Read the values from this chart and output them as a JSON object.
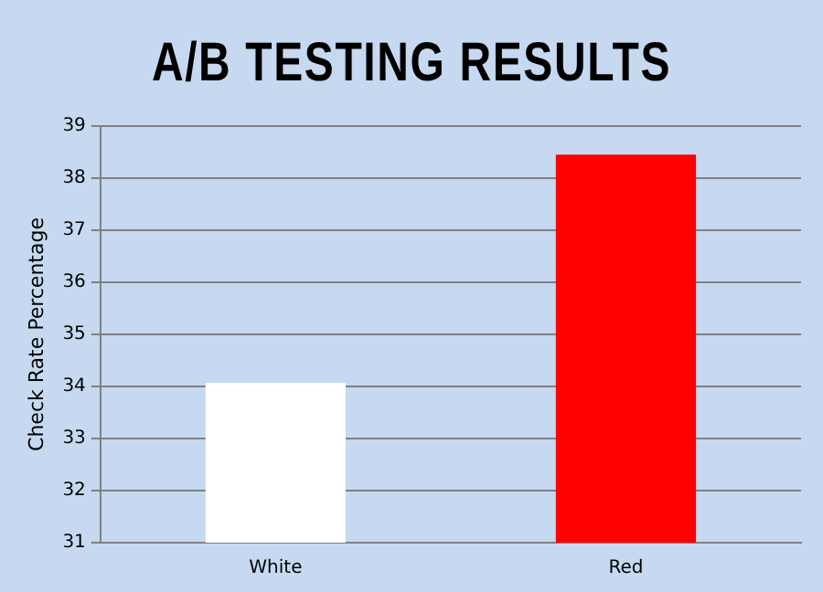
{
  "chart_data": {
    "type": "bar",
    "title": "A/B TESTING RESULTS",
    "ylabel": "Check Rate Percentage",
    "categories": [
      "White",
      "Red"
    ],
    "values": [
      34.07,
      38.45
    ],
    "colors": [
      "#ffffff",
      "#ff0000"
    ],
    "ylim": [
      31,
      39
    ],
    "yticks": [
      31,
      32,
      33,
      34,
      35,
      36,
      37,
      38,
      39
    ],
    "grid": "y",
    "legend": false
  }
}
